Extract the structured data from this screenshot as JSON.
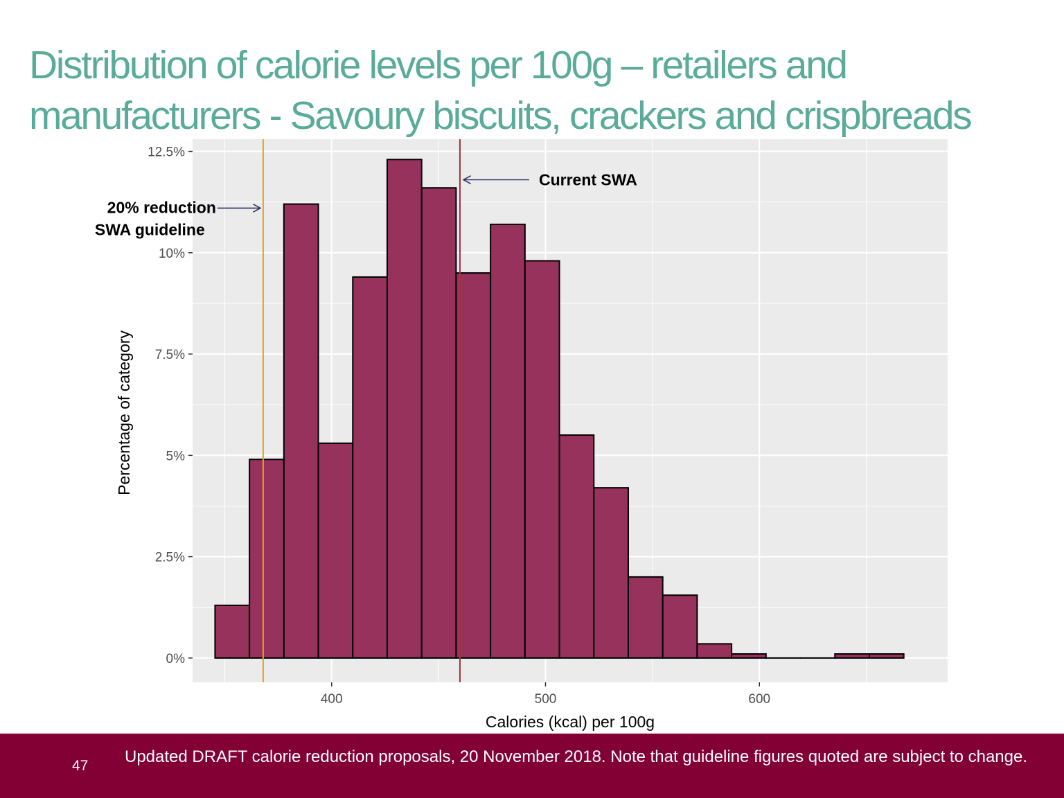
{
  "slide": {
    "title_line1": "Distribution of calorie levels per 100g – retailers and",
    "title_line2": "manufacturers - Savoury biscuits, crackers and crispbreads",
    "page_number": "47",
    "footer_note": "Updated DRAFT calorie reduction proposals, 20 November 2018. Note that guideline figures quoted are subject to change."
  },
  "colors": {
    "title": "#5aab9a",
    "footer_bg": "#820034",
    "bar_fill": "#96325c",
    "panel_bg": "#ebebeb",
    "current_swa_line": "#a0373a",
    "reduction_line": "#e8a020",
    "arrow": "#2c3566"
  },
  "chart_data": {
    "type": "bar",
    "subtype": "histogram",
    "xlabel": "Calories (kcal) per 100g",
    "ylabel": "Percentage of category",
    "xlim": [
      335,
      688
    ],
    "ylim": [
      -0.6,
      12.8
    ],
    "x_ticks": [
      400,
      500,
      600
    ],
    "x_tick_labels": [
      "400",
      "500",
      "600"
    ],
    "y_ticks": [
      0,
      2.5,
      5,
      7.5,
      10,
      12.5
    ],
    "y_tick_labels": [
      "0%",
      "2.5%",
      "5%",
      "7.5%",
      "10%",
      "12.5%"
    ],
    "bin_width": 16.1,
    "bins": [
      {
        "start": 345.5,
        "end": 361.6,
        "value": 1.3
      },
      {
        "start": 361.6,
        "end": 377.7,
        "value": 4.9
      },
      {
        "start": 377.7,
        "end": 393.8,
        "value": 11.2
      },
      {
        "start": 393.8,
        "end": 409.9,
        "value": 5.3
      },
      {
        "start": 409.9,
        "end": 426.0,
        "value": 9.4
      },
      {
        "start": 426.0,
        "end": 442.1,
        "value": 12.3
      },
      {
        "start": 442.1,
        "end": 458.2,
        "value": 11.6
      },
      {
        "start": 458.2,
        "end": 474.3,
        "value": 9.5
      },
      {
        "start": 474.3,
        "end": 490.4,
        "value": 10.7
      },
      {
        "start": 490.4,
        "end": 506.5,
        "value": 9.8
      },
      {
        "start": 506.5,
        "end": 522.6,
        "value": 5.5
      },
      {
        "start": 522.6,
        "end": 538.7,
        "value": 4.2
      },
      {
        "start": 538.7,
        "end": 554.8,
        "value": 2.0
      },
      {
        "start": 554.8,
        "end": 570.9,
        "value": 1.55
      },
      {
        "start": 570.9,
        "end": 587.0,
        "value": 0.35
      },
      {
        "start": 587.0,
        "end": 603.1,
        "value": 0.1
      },
      {
        "start": 603.1,
        "end": 619.2,
        "value": 0
      },
      {
        "start": 619.2,
        "end": 635.3,
        "value": 0
      },
      {
        "start": 635.3,
        "end": 651.4,
        "value": 0.1
      },
      {
        "start": 651.4,
        "end": 667.5,
        "value": 0.1
      }
    ],
    "reference_lines": [
      {
        "name": "reduction-guideline-line",
        "x": 368,
        "color": "#e8a020",
        "label_line1": "20% reduction",
        "label_line2": "SWA guideline",
        "label_position": "left",
        "arrow_y": 11.1
      },
      {
        "name": "current-swa-line",
        "x": 460,
        "color": "#a0373a",
        "label": "Current SWA",
        "label_position": "right",
        "arrow_y": 11.8
      }
    ]
  }
}
